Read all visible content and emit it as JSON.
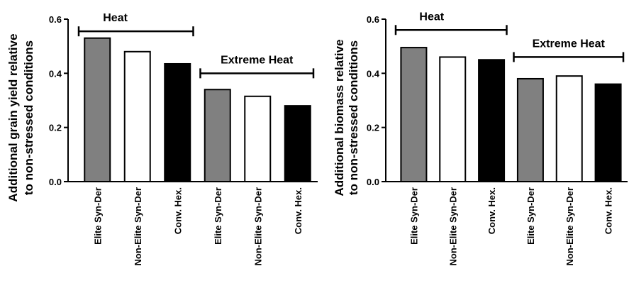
{
  "chart_data": [
    {
      "type": "bar",
      "ylabel_line1": "Additional grain yield relative",
      "ylabel_line2": "to non-stressed conditions",
      "categories": [
        "Elite Syn-Der",
        "Non-Elite Syn-Der",
        "Conv. Hex.",
        "Elite Syn-Der",
        "Non-Elite Syn-Der",
        "Conv. Hex."
      ],
      "values": [
        0.53,
        0.48,
        0.435,
        0.34,
        0.315,
        0.28
      ],
      "bar_colors": [
        "#808080",
        "#ffffff",
        "#000000",
        "#808080",
        "#ffffff",
        "#000000"
      ],
      "ylim": [
        0,
        0.6
      ],
      "yticks": [
        "0.0",
        "0.2",
        "0.4",
        "0.6"
      ],
      "groups": [
        {
          "label": "Heat",
          "from": 0,
          "to": 2,
          "level": 0.555
        },
        {
          "label": "Extreme Heat",
          "from": 3,
          "to": 5,
          "level": 0.4
        }
      ]
    },
    {
      "type": "bar",
      "ylabel_line1": "Additional biomass relative",
      "ylabel_line2": "to non-stressed conditions",
      "categories": [
        "Elite Syn-Der",
        "Non-Elite Syn-Der",
        "Conv. Hex.",
        "Elite Syn-Der",
        "Non-Elite Syn-Der",
        "Conv. Hex."
      ],
      "values": [
        0.495,
        0.46,
        0.45,
        0.38,
        0.39,
        0.36
      ],
      "bar_colors": [
        "#808080",
        "#ffffff",
        "#000000",
        "#808080",
        "#ffffff",
        "#000000"
      ],
      "ylim": [
        0,
        0.6
      ],
      "yticks": [
        "0.0",
        "0.2",
        "0.4",
        "0.6"
      ],
      "groups": [
        {
          "label": "Heat",
          "from": 0,
          "to": 2,
          "level": 0.56
        },
        {
          "label": "Extreme Heat",
          "from": 3,
          "to": 5,
          "level": 0.46
        }
      ]
    }
  ]
}
